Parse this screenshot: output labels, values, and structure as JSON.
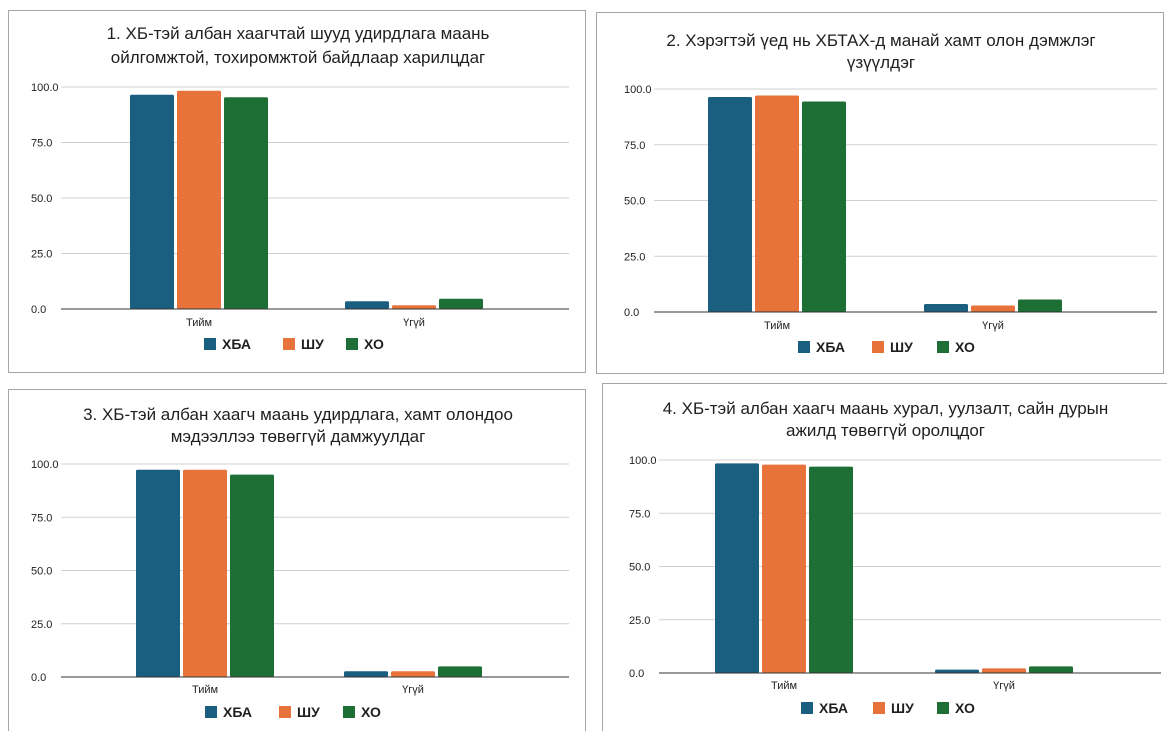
{
  "colors": {
    "ХБА": "#1a5e80",
    "ШУ": "#e8733a",
    "ХО": "#1e6f35"
  },
  "chart_data": [
    {
      "type": "bar",
      "title": [
        "1. ХБ-тэй албан хаагчтай шууд удирдлага маань",
        "ойлгомжтой, тохиромжтой байдлаар харилцдаг"
      ],
      "categories": [
        "Тийм",
        "Үгүй"
      ],
      "series": [
        {
          "name": "ХБА",
          "values": [
            96.5,
            3.5
          ]
        },
        {
          "name": "ШУ",
          "values": [
            98.3,
            1.7
          ]
        },
        {
          "name": "ХО",
          "values": [
            95.4,
            4.6
          ]
        }
      ],
      "yticks": [
        "0.0",
        "25.0",
        "50.0",
        "75.0",
        "100.0"
      ],
      "ylim": [
        0,
        100
      ],
      "grid": true,
      "legend": "bottom"
    },
    {
      "type": "bar",
      "title": [
        "2. Хэрэгтэй үед нь ХБТАХ-д манай хамт олон дэмжлэг",
        "үзүүлдэг"
      ],
      "categories": [
        "Тийм",
        "Үгүй"
      ],
      "series": [
        {
          "name": "ХБА",
          "values": [
            96.4,
            3.6
          ]
        },
        {
          "name": "ШУ",
          "values": [
            97.1,
            2.9
          ]
        },
        {
          "name": "ХО",
          "values": [
            94.4,
            5.6
          ]
        }
      ],
      "yticks": [
        "0.0",
        "25.0",
        "50.0",
        "75.0",
        "100.0"
      ],
      "ylim": [
        0,
        100
      ],
      "grid": true,
      "legend": "bottom"
    },
    {
      "type": "bar",
      "title": [
        "3. ХБ-тэй албан хаагч маань удирдлага, хамт олондоо",
        "мэдээллээ төвөггүй дамжуулдаг"
      ],
      "categories": [
        "Тийм",
        "Үгүй"
      ],
      "series": [
        {
          "name": "ХБА",
          "values": [
            97.3,
            2.7
          ]
        },
        {
          "name": "ШУ",
          "values": [
            97.3,
            2.7
          ]
        },
        {
          "name": "ХО",
          "values": [
            95.0,
            5.0
          ]
        }
      ],
      "yticks": [
        "0.0",
        "25.0",
        "50.0",
        "75.0",
        "100.0"
      ],
      "ylim": [
        0,
        100
      ],
      "grid": true,
      "legend": "bottom"
    },
    {
      "type": "bar",
      "title": [
        "4. ХБ-тэй албан хаагч маань хурал, уулзалт, сайн дурын",
        "ажилд төвөггүй оролцдог"
      ],
      "categories": [
        "Тийм",
        "Үгүй"
      ],
      "series": [
        {
          "name": "ХБА",
          "values": [
            98.4,
            1.6
          ]
        },
        {
          "name": "ШУ",
          "values": [
            97.8,
            2.2
          ]
        },
        {
          "name": "ХО",
          "values": [
            96.9,
            3.1
          ]
        }
      ],
      "yticks": [
        "0.0",
        "25.0",
        "50.0",
        "75.0",
        "100.0"
      ],
      "ylim": [
        0,
        100
      ],
      "grid": true,
      "legend": "bottom"
    }
  ]
}
